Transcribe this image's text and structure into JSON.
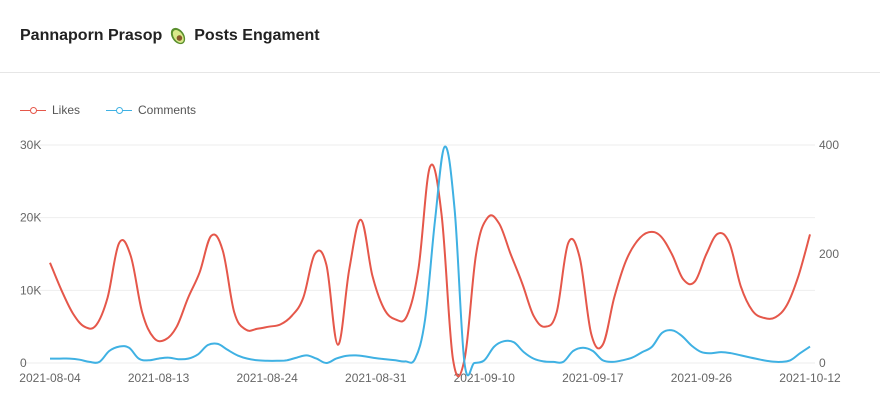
{
  "header": {
    "title_prefix": "Pannaporn Prasop",
    "title_suffix": "Posts Engament"
  },
  "colors": {
    "likes": "#e5574a",
    "comments": "#3fb1e3",
    "grid": "#eeeeee"
  },
  "chart_data": {
    "type": "line",
    "title": "Pannaporn Prasop 🥑 Posts Engament",
    "legend_position": "top-left",
    "grid": true,
    "x_tick_labels": [
      "2021-08-04",
      "2021-08-13",
      "2021-08-24",
      "2021-08-31",
      "2021-09-10",
      "2021-09-17",
      "2021-09-26",
      "2021-10-12"
    ],
    "left_axis": {
      "ticks": [
        "0",
        "10K",
        "20K",
        "30K"
      ],
      "ylim": [
        0,
        30000
      ]
    },
    "right_axis": {
      "ticks": [
        "0",
        "200",
        "400"
      ],
      "ylim": [
        0,
        400
      ]
    },
    "series": [
      {
        "name": "Likes",
        "axis": "left",
        "values": [
          13800,
          10000,
          6800,
          5000,
          5200,
          9000,
          16500,
          14800,
          7000,
          3500,
          3200,
          5000,
          9000,
          12500,
          17500,
          15500,
          7000,
          4600,
          4700,
          5000,
          5300,
          6500,
          9000,
          15000,
          13500,
          2500,
          13000,
          19700,
          12000,
          7500,
          6000,
          6500,
          13000,
          27000,
          20500,
          500,
          500,
          15000,
          20000,
          19200,
          15000,
          11000,
          6500,
          5000,
          7000,
          16500,
          14500,
          4000,
          2500,
          9000,
          14000,
          16800,
          18000,
          17500,
          15000,
          11500,
          11200,
          15000,
          17800,
          16500,
          10500,
          7200,
          6200,
          6300,
          8000,
          12000,
          17700
        ],
        "x": [
          0,
          1,
          2,
          3,
          4,
          5,
          6,
          7,
          8,
          9,
          10,
          11,
          12,
          13,
          14,
          15,
          16,
          17,
          18,
          19,
          20,
          21,
          22,
          23,
          24,
          25,
          26,
          27,
          28,
          29,
          30,
          31,
          32,
          33,
          34,
          35,
          36,
          37,
          38,
          39,
          40,
          41,
          42,
          43,
          44,
          45,
          46,
          47,
          48,
          49,
          50,
          51,
          52,
          53,
          54,
          55,
          56,
          57,
          58,
          59,
          60,
          61,
          62,
          63,
          64,
          65,
          66
        ]
      },
      {
        "name": "Comments",
        "axis": "right",
        "values": [
          8,
          8,
          8,
          6,
          2,
          2,
          22,
          30,
          28,
          8,
          5,
          8,
          10,
          7,
          8,
          16,
          33,
          35,
          24,
          14,
          8,
          5,
          4,
          4,
          5,
          10,
          14,
          8,
          0,
          8,
          13,
          14,
          12,
          9,
          7,
          5,
          3,
          8,
          80,
          260,
          397,
          280,
          0,
          0,
          5,
          30,
          40,
          38,
          20,
          8,
          3,
          2,
          2,
          22,
          28,
          22,
          5,
          2,
          5,
          10,
          20,
          30,
          55,
          60,
          50,
          32,
          20,
          18,
          20,
          18,
          14,
          10,
          6,
          3,
          2,
          5,
          18,
          30
        ],
        "x_start": 0,
        "x_end": 66
      }
    ],
    "ylabel_left": "",
    "ylabel_right": "",
    "xlabel": ""
  }
}
